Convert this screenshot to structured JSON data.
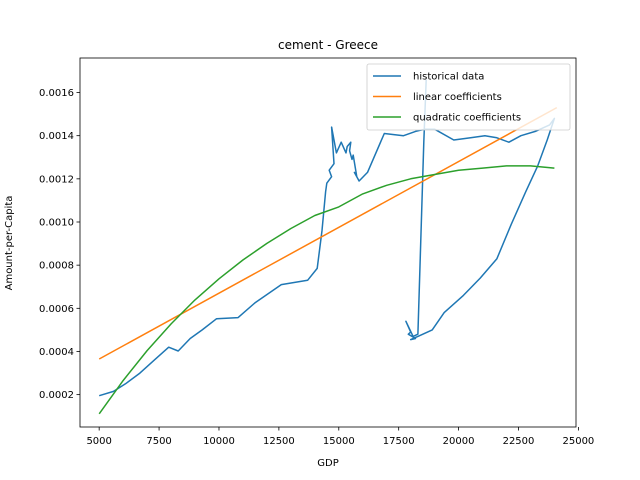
{
  "chart_data": {
    "type": "line",
    "title": "cement - Greece",
    "xlabel": "GDP",
    "ylabel": "Amount-per-Capita",
    "xlim": [
      4200,
      24900
    ],
    "ylim": [
      5e-05,
      0.00176
    ],
    "xticks": [
      5000,
      7500,
      10000,
      12500,
      15000,
      17500,
      20000,
      22500,
      25000
    ],
    "xtick_labels": [
      "5000",
      "7500",
      "10000",
      "12500",
      "15000",
      "17500",
      "20000",
      "22500",
      "25000"
    ],
    "yticks": [
      0.0002,
      0.0004,
      0.0006,
      0.0008,
      0.001,
      0.0012,
      0.0014,
      0.0016
    ],
    "ytick_labels": [
      "0.0002",
      "0.0004",
      "0.0006",
      "0.0008",
      "0.0010",
      "0.0012",
      "0.0014",
      "0.0016"
    ],
    "grid": false,
    "legend_position": "top-right",
    "series": [
      {
        "name": "historical data",
        "color": "#1f77b4",
        "x": [
          5000,
          5600,
          6100,
          6700,
          7300,
          7900,
          8300,
          8800,
          9300,
          9900,
          10800,
          11500,
          12600,
          13700,
          14100,
          14300,
          14450,
          14500,
          14700,
          14600,
          14800,
          14700,
          14900,
          15100,
          15300,
          15350,
          15500,
          15450,
          15550,
          15600,
          15750,
          15650,
          15850,
          16200,
          16900,
          17700,
          18200,
          18600,
          19000,
          19800,
          20500,
          21100,
          21600,
          22100,
          22600,
          23200,
          23800,
          24000,
          23700,
          23300,
          22800,
          22200,
          21600,
          20900,
          20200,
          19400,
          18900,
          18300,
          18000,
          18200,
          17900,
          18000,
          17800,
          18100,
          18300,
          18550,
          18650
        ],
        "y": [
          0.000195,
          0.000215,
          0.00025,
          0.0003,
          0.00036,
          0.00042,
          0.000402,
          0.00046,
          0.0005,
          0.000552,
          0.000557,
          0.000625,
          0.00071,
          0.00073,
          0.000785,
          0.00096,
          0.00114,
          0.00118,
          0.00121,
          0.00124,
          0.00127,
          0.00144,
          0.00132,
          0.00137,
          0.00132,
          0.00135,
          0.00137,
          0.00133,
          0.00129,
          0.00131,
          0.00121,
          0.00123,
          0.00119,
          0.00123,
          0.00141,
          0.0014,
          0.00142,
          0.00143,
          0.00143,
          0.00138,
          0.00139,
          0.0014,
          0.00139,
          0.00137,
          0.0014,
          0.00142,
          0.00145,
          0.00148,
          0.00138,
          0.00126,
          0.00114,
          0.00099,
          0.00083,
          0.00074,
          0.00066,
          0.00058,
          0.0005,
          0.00047,
          0.000455,
          0.00046,
          0.00048,
          0.00049,
          0.00054,
          0.00047,
          0.00048,
          0.00137,
          0.00166
        ]
      },
      {
        "name": "linear coefficients",
        "color": "#ff7f0e",
        "x": [
          5000,
          24100
        ],
        "y": [
          0.000365,
          0.00153
        ]
      },
      {
        "name": "quadratic coefficients",
        "color": "#2ca02c",
        "x": [
          5000,
          6000,
          7000,
          8000,
          9000,
          10000,
          11000,
          12000,
          13000,
          14000,
          15000,
          16000,
          17000,
          18000,
          19000,
          20000,
          21000,
          22000,
          23000,
          24000
        ],
        "y": [
          0.000111,
          0.000265,
          0.000404,
          0.000528,
          0.000639,
          0.000737,
          0.000824,
          0.000901,
          0.00097,
          0.00103,
          0.00107,
          0.00113,
          0.00117,
          0.0012,
          0.00122,
          0.00124,
          0.00125,
          0.00126,
          0.00126,
          0.00125
        ]
      }
    ]
  }
}
